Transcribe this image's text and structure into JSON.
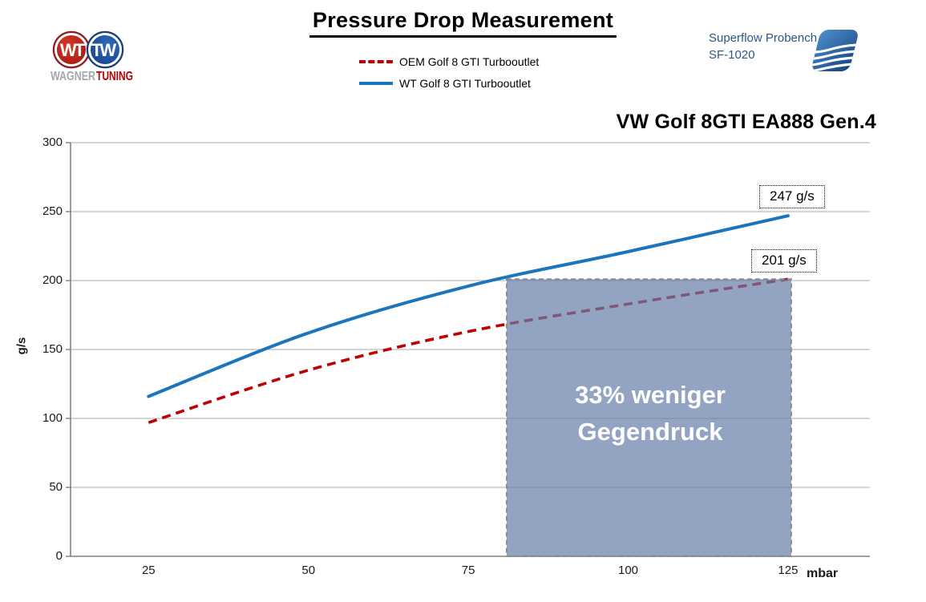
{
  "title": "Pressure Drop Measurement",
  "logo": {
    "monogram": "WT",
    "brand_gray": "WAGNER",
    "brand_red": "TUNING"
  },
  "bench": {
    "name": "Superflow Probench",
    "model": "SF-1020"
  },
  "chart_title": "VW Golf 8GTI EA888 Gen.4",
  "legend": {
    "items": [
      {
        "label": "OEM Golf 8 GTI Turbooutlet",
        "color": "#C00000",
        "style": "dashed"
      },
      {
        "label": "WT Golf 8 GTI Turbooutlet",
        "color": "#1B75BC",
        "style": "solid"
      }
    ]
  },
  "chart_data": {
    "type": "line",
    "x": [
      25,
      50,
      75,
      100,
      125
    ],
    "series": [
      {
        "name": "OEM Golf 8 GTI Turbooutlet",
        "values": [
          97,
          135,
          163,
          183,
          201
        ],
        "color": "#C00000",
        "dash": true
      },
      {
        "name": "WT Golf 8 GTI Turbooutlet",
        "values": [
          116,
          162,
          196,
          221,
          247
        ],
        "color": "#1B75BC",
        "dash": false
      }
    ],
    "title": "VW Golf 8GTI EA888 Gen.4",
    "xlabel": "mbar",
    "ylabel": "g/s",
    "xticks": [
      25,
      50,
      75,
      100,
      125
    ],
    "yticks": [
      0,
      50,
      100,
      150,
      200,
      250,
      300
    ],
    "xlim": [
      12.8,
      137.8
    ],
    "ylim": [
      0,
      300
    ],
    "grid": true,
    "legend_position": "top-center",
    "annotations": [
      {
        "text": "247 g/s",
        "x": 125,
        "y": 247,
        "series": "WT Golf 8 GTI Turbooutlet"
      },
      {
        "text": "201 g/s",
        "x": 125,
        "y": 201,
        "series": "OEM Golf 8 GTI Turbooutlet"
      }
    ],
    "highlight_region": {
      "x0": 81,
      "x1": 125.5,
      "y0": 0,
      "y1": 201,
      "fill": "#657EA9",
      "opacity": 0.7,
      "border": "#8C8C8C",
      "label_line1": "33% weniger",
      "label_line2": "Gegendruck"
    }
  },
  "colors": {
    "grid": "#ABABAB",
    "axis": "#808080",
    "bench_text": "#2F5680",
    "region_fill_observed": "#93A5C3"
  }
}
